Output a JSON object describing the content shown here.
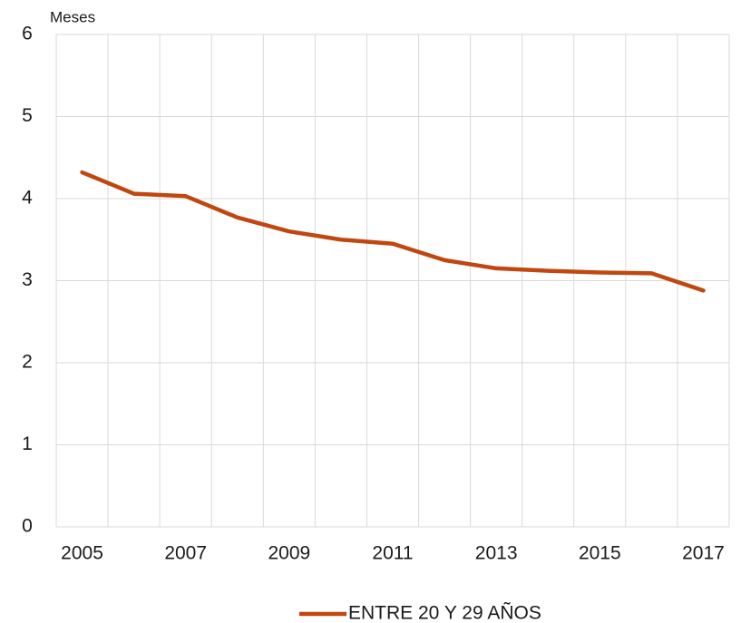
{
  "chart_data": {
    "type": "line",
    "y_label": "Meses",
    "categories": [
      "2005",
      null,
      "2007",
      null,
      "2009",
      null,
      "2011",
      null,
      "2013",
      null,
      "2015",
      null,
      "2017"
    ],
    "series": [
      {
        "name": "ENTRE 20 Y 29 AÑOS",
        "color": "#c0470f",
        "values": [
          4.32,
          4.06,
          4.03,
          3.77,
          3.6,
          3.5,
          3.45,
          3.25,
          3.15,
          3.12,
          3.1,
          3.09,
          2.88
        ]
      }
    ],
    "ylim": [
      0,
      6
    ],
    "yticks": [
      0,
      1,
      2,
      3,
      4,
      5,
      6
    ],
    "grid": true,
    "legend": "bottom"
  }
}
